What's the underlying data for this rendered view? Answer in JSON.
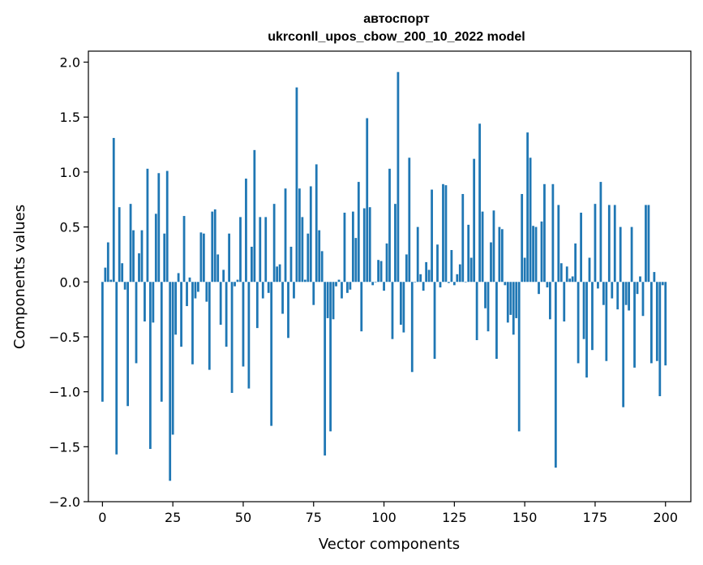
{
  "chart_data": {
    "type": "bar",
    "title": "автоспорт",
    "subtitle": "ukrconll_upos_cbow_200_10_2022 model",
    "xlabel": "Vector components",
    "ylabel": "Components values",
    "xlim": [
      -5,
      209
    ],
    "ylim": [
      -2.0,
      2.1
    ],
    "xticks": [
      0,
      25,
      50,
      75,
      100,
      125,
      150,
      175,
      200
    ],
    "yticks": [
      -2.0,
      -1.5,
      -1.0,
      -0.5,
      0.0,
      0.5,
      1.0,
      1.5,
      2.0
    ],
    "xtick_labels": [
      "0",
      "25",
      "50",
      "75",
      "100",
      "125",
      "150",
      "175",
      "200"
    ],
    "ytick_labels": [
      "−2.0",
      "−1.5",
      "−1.0",
      "−0.5",
      "0.0",
      "0.5",
      "1.0",
      "1.5",
      "2.0"
    ],
    "grid": false,
    "bar_color": "#1f77b4",
    "values": [
      -1.09,
      0.13,
      0.36,
      0.02,
      1.31,
      -1.57,
      0.68,
      0.17,
      -0.07,
      -1.13,
      0.71,
      0.47,
      -0.74,
      0.26,
      0.47,
      -0.36,
      1.03,
      -1.52,
      -0.37,
      0.62,
      0.99,
      -1.09,
      0.44,
      1.01,
      -1.81,
      -1.39,
      -0.48,
      0.08,
      -0.59,
      0.6,
      -0.22,
      0.04,
      -0.75,
      -0.15,
      -0.09,
      0.45,
      0.44,
      -0.18,
      -0.8,
      0.64,
      0.66,
      0.25,
      -0.39,
      0.11,
      -0.59,
      0.44,
      -1.01,
      -0.04,
      0.02,
      0.59,
      -0.77,
      0.94,
      -0.97,
      0.32,
      1.2,
      -0.42,
      0.59,
      -0.15,
      0.59,
      -0.1,
      -1.31,
      0.71,
      0.14,
      0.16,
      -0.29,
      0.85,
      -0.51,
      0.32,
      -0.15,
      1.77,
      0.85,
      0.59,
      0.02,
      0.44,
      0.87,
      -0.21,
      1.07,
      0.47,
      0.28,
      -1.58,
      -0.33,
      -1.36,
      -0.34,
      -0.04,
      0.02,
      -0.15,
      0.63,
      -0.1,
      -0.07,
      0.64,
      0.4,
      0.91,
      -0.45,
      0.67,
      1.49,
      0.68,
      -0.03,
      0.0,
      0.2,
      0.19,
      -0.08,
      0.35,
      1.03,
      -0.52,
      0.71,
      1.91,
      -0.39,
      -0.46,
      0.25,
      1.13,
      -0.82,
      0.0,
      0.5,
      0.07,
      -0.08,
      0.18,
      0.11,
      0.84,
      -0.7,
      0.34,
      -0.05,
      0.89,
      0.88,
      -0.01,
      0.29,
      -0.03,
      0.07,
      0.16,
      0.8,
      0.0,
      0.52,
      0.22,
      1.12,
      -0.53,
      1.44,
      0.64,
      -0.24,
      -0.45,
      0.36,
      0.65,
      -0.7,
      0.5,
      0.48,
      -0.03,
      -0.37,
      -0.3,
      -0.48,
      -0.33,
      -1.36,
      0.8,
      0.22,
      1.36,
      1.13,
      0.51,
      0.5,
      -0.11,
      0.55,
      0.89,
      -0.05,
      -0.34,
      0.89,
      -1.69,
      0.7,
      0.17,
      -0.36,
      0.14,
      0.03,
      0.05,
      0.35,
      -0.74,
      0.63,
      -0.52,
      -0.87,
      0.22,
      -0.62,
      0.71,
      -0.06,
      0.91,
      -0.21,
      -0.72,
      0.7,
      -0.15,
      0.7,
      -0.25,
      0.5,
      -1.14,
      -0.21,
      -0.26,
      0.5,
      -0.78,
      -0.11,
      0.05,
      -0.31,
      0.7,
      0.7,
      -0.74,
      0.09,
      -0.72,
      -1.04,
      -0.03,
      -0.76
    ]
  }
}
